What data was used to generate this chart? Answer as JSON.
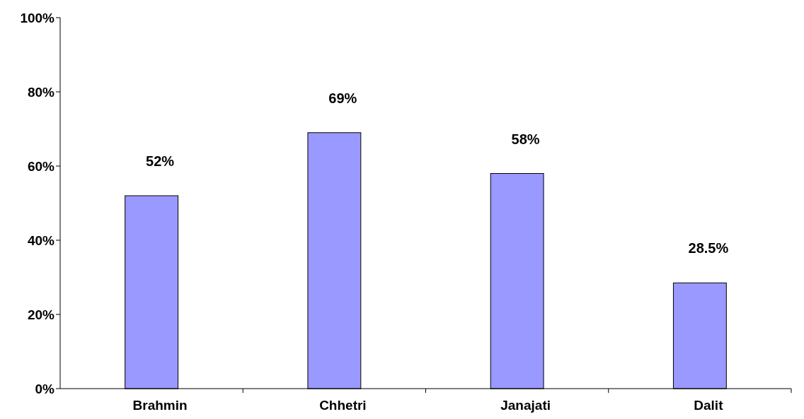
{
  "chart_data": {
    "type": "bar",
    "categories": [
      "Brahmin",
      "Chhetri",
      "Janajati",
      "Dalit"
    ],
    "values": [
      52,
      69,
      58,
      28.5
    ],
    "color": "#9999ff",
    "value_labels": [
      "52%",
      "69%",
      "58%",
      "28.5%"
    ],
    "ylim": [
      0,
      100
    ],
    "yticks": [
      {
        "value": 0,
        "label": "0%"
      },
      {
        "value": 20,
        "label": "20%"
      },
      {
        "value": 40,
        "label": "40%"
      },
      {
        "value": 60,
        "label": "60%"
      },
      {
        "value": 80,
        "label": "80%"
      },
      {
        "value": 100,
        "label": "100%"
      }
    ],
    "grid": false
  }
}
